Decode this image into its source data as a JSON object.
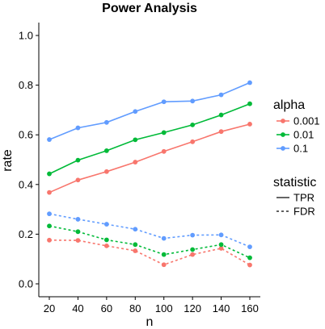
{
  "chart_data": {
    "type": "line",
    "title": "Power Analysis",
    "xlabel": "n",
    "ylabel": "rate",
    "x": [
      20,
      40,
      60,
      80,
      100,
      120,
      140,
      160
    ],
    "xlim": [
      20,
      160
    ],
    "ylim": [
      0.0,
      1.0
    ],
    "yticks": [
      0.0,
      0.2,
      0.4,
      0.6,
      0.8,
      1.0
    ],
    "ytick_labels": [
      "0.0",
      "0.2",
      "0.4",
      "0.6",
      "0.8",
      "1.0"
    ],
    "xticks": [
      20,
      40,
      60,
      80,
      100,
      120,
      140,
      160
    ],
    "xtick_labels": [
      "20",
      "40",
      "60",
      "80",
      "100",
      "120",
      "140",
      "160"
    ],
    "grid": false,
    "legend_placement": "right",
    "legend": {
      "alpha": {
        "title": "alpha",
        "entries": [
          {
            "label": "0.001",
            "color": "#F8766D"
          },
          {
            "label": "0.01",
            "color": "#00BA38"
          },
          {
            "label": "0.1",
            "color": "#619CFF"
          }
        ]
      },
      "statistic": {
        "title": "statistic",
        "entries": [
          {
            "label": "TPR",
            "linestyle": "solid"
          },
          {
            "label": "FDR",
            "linestyle": "dashed"
          }
        ]
      }
    },
    "series": [
      {
        "alpha": "0.001",
        "statistic": "TPR",
        "color": "#F8766D",
        "linestyle": "solid",
        "values": [
          0.368,
          0.418,
          0.452,
          0.49,
          0.533,
          0.572,
          0.613,
          0.643
        ]
      },
      {
        "alpha": "0.01",
        "statistic": "TPR",
        "color": "#00BA38",
        "linestyle": "solid",
        "values": [
          0.443,
          0.498,
          0.536,
          0.58,
          0.609,
          0.64,
          0.68,
          0.725
        ]
      },
      {
        "alpha": "0.1",
        "statistic": "TPR",
        "color": "#619CFF",
        "linestyle": "solid",
        "values": [
          0.581,
          0.628,
          0.65,
          0.694,
          0.733,
          0.736,
          0.761,
          0.81
        ]
      },
      {
        "alpha": "0.001",
        "statistic": "FDR",
        "color": "#F8766D",
        "linestyle": "dashed",
        "values": [
          0.176,
          0.175,
          0.153,
          0.133,
          0.077,
          0.118,
          0.143,
          0.076
        ]
      },
      {
        "alpha": "0.01",
        "statistic": "FDR",
        "color": "#00BA38",
        "linestyle": "dashed",
        "values": [
          0.233,
          0.21,
          0.177,
          0.158,
          0.118,
          0.138,
          0.158,
          0.105
        ]
      },
      {
        "alpha": "0.1",
        "statistic": "FDR",
        "color": "#619CFF",
        "linestyle": "dashed",
        "values": [
          0.282,
          0.26,
          0.24,
          0.22,
          0.183,
          0.196,
          0.197,
          0.149
        ]
      }
    ]
  }
}
